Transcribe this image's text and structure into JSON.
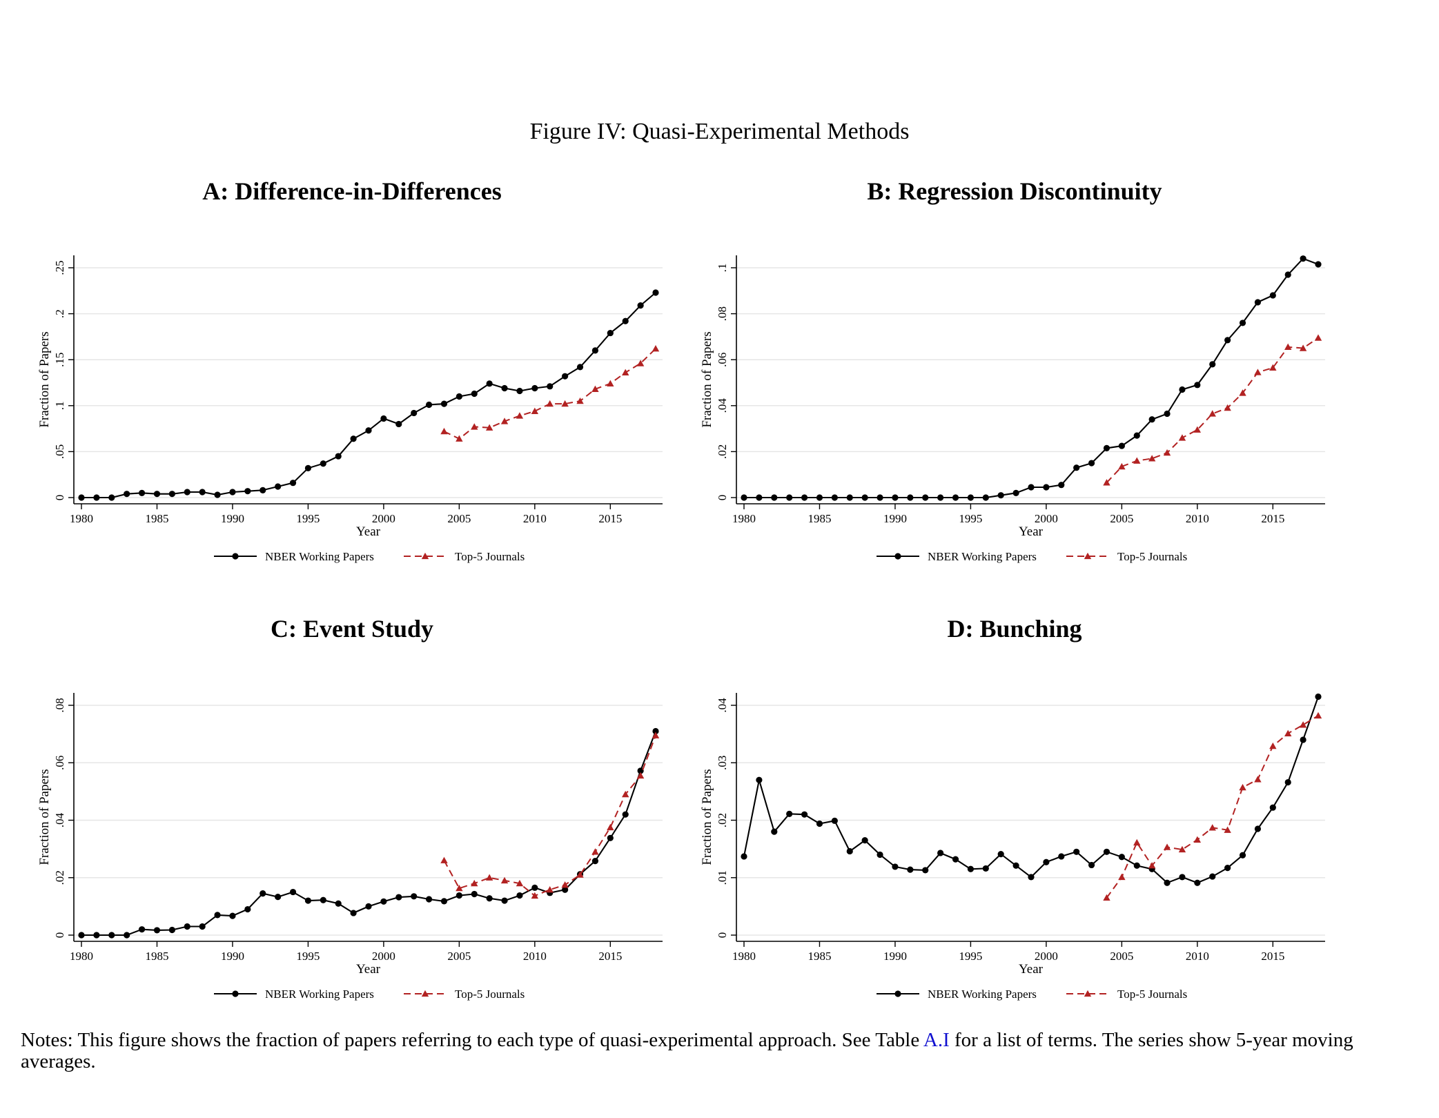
{
  "figure": {
    "title": "Figure IV: Quasi-Experimental Methods",
    "notes_before": "Notes: This figure shows the fraction of papers referring to each type of quasi-experimental approach. See Table ",
    "notes_link": "A.I",
    "notes_after": " for a list of terms. The series show 5-year moving averages."
  },
  "colors": {
    "nber": "#000000",
    "top5": "#b22222",
    "grid": "#e6e6e6"
  },
  "chart_data": [
    {
      "id": "A",
      "type": "line",
      "title": "A: Difference-in-Differences",
      "xlabel": "Year",
      "ylabel": "Fraction of Papers",
      "xlim": [
        1980,
        2018
      ],
      "ylim": [
        0,
        0.25
      ],
      "xticks": [
        1980,
        1985,
        1990,
        1995,
        2000,
        2005,
        2010,
        2015
      ],
      "yticks": [
        0,
        0.05,
        0.1,
        0.15,
        0.2,
        0.25
      ],
      "ytick_labels": [
        "0",
        ".05",
        ".1",
        ".15",
        ".2",
        ".25"
      ],
      "legend_position": "bottom",
      "series": [
        {
          "name": "NBER Working Papers",
          "start": 1980,
          "values": [
            0.0,
            0.0,
            0.0,
            0.004,
            0.005,
            0.004,
            0.004,
            0.006,
            0.006,
            0.003,
            0.006,
            0.007,
            0.008,
            0.012,
            0.016,
            0.032,
            0.037,
            0.045,
            0.064,
            0.073,
            0.086,
            0.08,
            0.092,
            0.101,
            0.102,
            0.11,
            0.113,
            0.124,
            0.119,
            0.116,
            0.119,
            0.121,
            0.132,
            0.142,
            0.16,
            0.179,
            0.192,
            0.209,
            0.223
          ]
        },
        {
          "name": "Top-5 Journals",
          "start": 2004,
          "values": [
            0.072,
            0.064,
            0.077,
            0.076,
            0.083,
            0.089,
            0.094,
            0.102,
            0.102,
            0.105,
            0.118,
            0.124,
            0.136,
            0.146,
            0.162
          ]
        }
      ]
    },
    {
      "id": "B",
      "type": "line",
      "title": "B: Regression Discontinuity",
      "xlabel": "Year",
      "ylabel": "Fraction of Papers",
      "xlim": [
        1980,
        2018
      ],
      "ylim": [
        0,
        0.1
      ],
      "xticks": [
        1980,
        1985,
        1990,
        1995,
        2000,
        2005,
        2010,
        2015
      ],
      "yticks": [
        0,
        0.02,
        0.04,
        0.06,
        0.08,
        0.1
      ],
      "ytick_labels": [
        "0",
        ".02",
        ".04",
        ".06",
        ".08",
        ".1"
      ],
      "legend_position": "bottom",
      "series": [
        {
          "name": "NBER Working Papers",
          "start": 1980,
          "values": [
            0,
            0,
            0,
            0,
            0,
            0,
            0,
            0,
            0,
            0,
            0,
            0,
            0,
            0,
            0,
            0,
            0,
            0.001,
            0.002,
            0.0045,
            0.0045,
            0.0055,
            0.013,
            0.015,
            0.0215,
            0.0225,
            0.027,
            0.034,
            0.0365,
            0.047,
            0.049,
            0.058,
            0.0685,
            0.076,
            0.085,
            0.088,
            0.097,
            0.104,
            0.1015
          ]
        },
        {
          "name": "Top-5 Journals",
          "start": 2004,
          "values": [
            0.0065,
            0.0135,
            0.016,
            0.017,
            0.0195,
            0.026,
            0.0295,
            0.0365,
            0.039,
            0.0455,
            0.0545,
            0.0565,
            0.0655,
            0.065,
            0.0695
          ]
        }
      ]
    },
    {
      "id": "C",
      "type": "line",
      "title": "C: Event Study",
      "xlabel": "Year",
      "ylabel": "Fraction of Papers",
      "xlim": [
        1980,
        2018
      ],
      "ylim": [
        0,
        0.08
      ],
      "xticks": [
        1980,
        1985,
        1990,
        1995,
        2000,
        2005,
        2010,
        2015
      ],
      "yticks": [
        0,
        0.02,
        0.04,
        0.06,
        0.08
      ],
      "ytick_labels": [
        "0",
        ".02",
        ".04",
        ".06",
        ".08"
      ],
      "legend_position": "bottom",
      "series": [
        {
          "name": "NBER Working Papers",
          "start": 1980,
          "values": [
            0.0,
            0.0,
            0.0,
            0.0,
            0.002,
            0.0017,
            0.0018,
            0.003,
            0.003,
            0.007,
            0.0067,
            0.009,
            0.0145,
            0.0133,
            0.015,
            0.012,
            0.0122,
            0.011,
            0.0077,
            0.01,
            0.0117,
            0.0132,
            0.0135,
            0.0125,
            0.0118,
            0.0138,
            0.0143,
            0.0128,
            0.012,
            0.0138,
            0.0165,
            0.0147,
            0.0158,
            0.0212,
            0.0258,
            0.0338,
            0.042,
            0.0572,
            0.071
          ]
        },
        {
          "name": "Top-5 Journals",
          "start": 2004,
          "values": [
            0.026,
            0.0163,
            0.018,
            0.02,
            0.019,
            0.018,
            0.0137,
            0.0158,
            0.0175,
            0.021,
            0.029,
            0.0375,
            0.049,
            0.0555,
            0.0695
          ]
        }
      ]
    },
    {
      "id": "D",
      "type": "line",
      "title": "D: Bunching",
      "xlabel": "Year",
      "ylabel": "Fraction of Papers",
      "xlim": [
        1980,
        2018
      ],
      "ylim": [
        0,
        0.04
      ],
      "xticks": [
        1980,
        1985,
        1990,
        1995,
        2000,
        2005,
        2010,
        2015
      ],
      "yticks": [
        0,
        0.01,
        0.02,
        0.03,
        0.04
      ],
      "ytick_labels": [
        "0",
        ".01",
        ".02",
        ".03",
        ".04"
      ],
      "legend_position": "bottom",
      "series": [
        {
          "name": "NBER Working Papers",
          "start": 1980,
          "values": [
            0.0137,
            0.027,
            0.018,
            0.0211,
            0.021,
            0.0194,
            0.0199,
            0.0146,
            0.0165,
            0.014,
            0.0119,
            0.0114,
            0.0113,
            0.0143,
            0.0132,
            0.0115,
            0.0116,
            0.0141,
            0.0121,
            0.0101,
            0.0127,
            0.0137,
            0.0145,
            0.0122,
            0.0145,
            0.0136,
            0.0121,
            0.0115,
            0.0091,
            0.0101,
            0.0091,
            0.0102,
            0.0117,
            0.0139,
            0.0185,
            0.0222,
            0.0266,
            0.034,
            0.0415
          ]
        },
        {
          "name": "Top-5 Journals",
          "start": 2004,
          "values": [
            0.0065,
            0.0101,
            0.0161,
            0.0121,
            0.0153,
            0.0149,
            0.0166,
            0.0187,
            0.0183,
            0.0257,
            0.0271,
            0.0329,
            0.0351,
            0.0366,
            0.0382
          ]
        }
      ]
    }
  ]
}
